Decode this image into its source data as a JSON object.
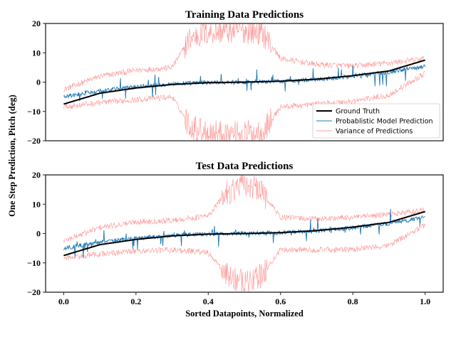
{
  "figure": {
    "ylabel": "One Step Prediction, Pitch (deg)",
    "xlabel": "Sorted Datapoints, Normalized"
  },
  "legend": {
    "entries": [
      "Ground Truth",
      "Probablistic Model Prediction",
      "Variance of Predictions"
    ],
    "placement": "lower-right of top panel"
  },
  "colors": {
    "ground_truth": "#000000",
    "prediction": "#1f77b4",
    "variance": "#ff8080",
    "axes": "#222222"
  },
  "chart_data": [
    {
      "type": "line",
      "title": "Training Data Predictions",
      "xlim": [
        -0.05,
        1.05
      ],
      "ylim": [
        -20,
        20
      ],
      "yticks": [
        20,
        10,
        0,
        -10,
        -20
      ],
      "yticklabels": [
        "20",
        "10",
        "0",
        "−10",
        "−20"
      ],
      "show_xticks": false,
      "grid": false,
      "series": [
        {
          "name": "Ground Truth",
          "x": [
            0.0,
            0.1,
            0.2,
            0.3,
            0.4,
            0.5,
            0.6,
            0.7,
            0.8,
            0.9,
            1.0
          ],
          "y": [
            -7.5,
            -3.8,
            -2.0,
            -0.8,
            -0.2,
            0.0,
            0.3,
            1.0,
            2.2,
            3.8,
            7.5
          ]
        },
        {
          "name": "Probablistic Model Prediction",
          "x": [
            0.0,
            0.1,
            0.2,
            0.3,
            0.4,
            0.5,
            0.6,
            0.7,
            0.8,
            0.9,
            1.0
          ],
          "y": [
            -5.0,
            -3.0,
            -1.6,
            -0.6,
            -0.1,
            0.0,
            0.3,
            0.9,
            2.0,
            3.4,
            5.5
          ]
        },
        {
          "name": "Variance of Predictions",
          "x": [
            0.0,
            0.1,
            0.2,
            0.3,
            0.35,
            0.4,
            0.45,
            0.5,
            0.55,
            0.6,
            0.7,
            0.8,
            0.9,
            1.0
          ],
          "upper": [
            -2.5,
            2.0,
            4.0,
            5.0,
            15.0,
            17.0,
            17.5,
            17.5,
            17.0,
            8.0,
            6.0,
            5.5,
            6.5,
            8.0
          ],
          "lower": [
            -8.5,
            -7.0,
            -6.0,
            -5.0,
            -15.0,
            -17.0,
            -17.5,
            -17.5,
            -17.0,
            -8.5,
            -7.5,
            -6.5,
            -4.5,
            3.0
          ]
        }
      ]
    },
    {
      "type": "line",
      "title": "Test Data Predictions",
      "xlim": [
        -0.05,
        1.05
      ],
      "ylim": [
        -20,
        20
      ],
      "yticks": [
        20,
        10,
        0,
        -10,
        -20
      ],
      "yticklabels": [
        "20",
        "10",
        "0",
        "−10",
        "−20"
      ],
      "xticks": [
        0.0,
        0.2,
        0.4,
        0.6,
        0.8,
        1.0
      ],
      "xticklabels": [
        "0.0",
        "0.2",
        "0.4",
        "0.6",
        "0.8",
        "1.0"
      ],
      "show_xticks": true,
      "grid": false,
      "series": [
        {
          "name": "Ground Truth",
          "x": [
            0.0,
            0.1,
            0.2,
            0.3,
            0.4,
            0.5,
            0.6,
            0.7,
            0.8,
            0.9,
            1.0
          ],
          "y": [
            -7.5,
            -3.8,
            -2.0,
            -0.8,
            -0.2,
            0.0,
            0.3,
            1.0,
            2.2,
            3.8,
            7.5
          ]
        },
        {
          "name": "Probablistic Model Prediction",
          "x": [
            0.0,
            0.1,
            0.2,
            0.3,
            0.4,
            0.5,
            0.6,
            0.7,
            0.8,
            0.9,
            1.0
          ],
          "y": [
            -5.0,
            -3.0,
            -1.6,
            -0.6,
            -0.1,
            0.0,
            0.3,
            0.9,
            2.0,
            3.4,
            5.5
          ]
        },
        {
          "name": "Variance of Predictions",
          "x": [
            0.0,
            0.1,
            0.2,
            0.3,
            0.4,
            0.45,
            0.5,
            0.55,
            0.6,
            0.7,
            0.8,
            0.9,
            1.0
          ],
          "upper": [
            -2.5,
            2.0,
            4.0,
            4.5,
            6.0,
            14.0,
            17.0,
            14.0,
            5.5,
            5.0,
            5.5,
            6.5,
            8.0
          ],
          "lower": [
            -8.5,
            -7.0,
            -6.0,
            -5.5,
            -6.5,
            -14.0,
            -17.0,
            -14.0,
            -5.5,
            -5.5,
            -5.5,
            -4.0,
            3.0
          ]
        }
      ]
    }
  ]
}
